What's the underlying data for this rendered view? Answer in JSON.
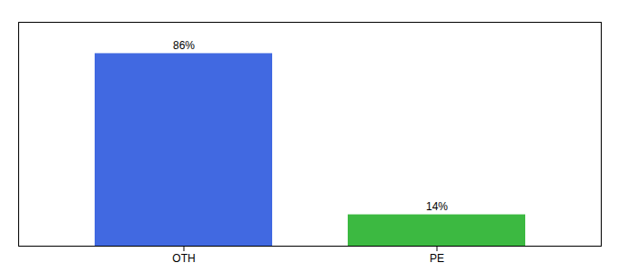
{
  "chart_data": {
    "type": "bar",
    "categories": [
      "OTH",
      "PE"
    ],
    "values": [
      86,
      14
    ],
    "value_labels": [
      "86%",
      "14%"
    ],
    "colors": [
      "#4169E1",
      "#3CB941"
    ],
    "ylim": [
      0,
      100
    ],
    "data_labels": true,
    "tick_labels": "x",
    "grid": false
  }
}
